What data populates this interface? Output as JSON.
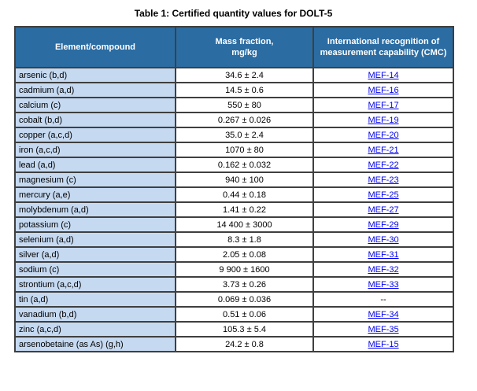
{
  "title": "Table 1: Certified quantity values for DOLT-5",
  "colors": {
    "header_bg": "#2b6ca2",
    "header_text": "#ffffff",
    "element_column_bg": "#c5d9f1",
    "link": "#0000ee",
    "border": "#3f3f3f"
  },
  "table": {
    "headers": {
      "element": "Element/compound",
      "mass_fraction": "Mass fraction,\nmg/kg",
      "cmc": "International recognition of measurement capability (CMC)"
    },
    "rows": [
      {
        "element": "arsenic (b,d)",
        "mass_fraction": "34.6 ± 2.4",
        "cmc": "MEF-14",
        "cmc_is_link": true
      },
      {
        "element": "cadmium (a,d)",
        "mass_fraction": "14.5 ± 0.6",
        "cmc": "MEF-16",
        "cmc_is_link": true
      },
      {
        "element": "calcium (c)",
        "mass_fraction": "550 ± 80",
        "cmc": "MEF-17",
        "cmc_is_link": true
      },
      {
        "element": "cobalt (b,d)",
        "mass_fraction": "0.267 ± 0.026",
        "cmc": "MEF-19",
        "cmc_is_link": true
      },
      {
        "element": "copper (a,c,d)",
        "mass_fraction": "35.0 ± 2.4",
        "cmc": "MEF-20",
        "cmc_is_link": true
      },
      {
        "element": "iron (a,c,d)",
        "mass_fraction": "1070 ± 80",
        "cmc": "MEF-21",
        "cmc_is_link": true
      },
      {
        "element": "lead (a,d)",
        "mass_fraction": "0.162 ± 0.032",
        "cmc": "MEF-22",
        "cmc_is_link": true
      },
      {
        "element": "magnesium (c)",
        "mass_fraction": "940 ± 100",
        "cmc": "MEF-23",
        "cmc_is_link": true
      },
      {
        "element": "mercury (a,e)",
        "mass_fraction": "0.44 ± 0.18",
        "cmc": "MEF-25",
        "cmc_is_link": true
      },
      {
        "element": "molybdenum (a,d)",
        "mass_fraction": "1.41 ± 0.22",
        "cmc": "MEF-27",
        "cmc_is_link": true
      },
      {
        "element": "potassium (c)",
        "mass_fraction": "14 400 ± 3000",
        "cmc": "MEF-29",
        "cmc_is_link": true
      },
      {
        "element": "selenium (a,d)",
        "mass_fraction": "8.3 ± 1.8",
        "cmc": "MEF-30",
        "cmc_is_link": true
      },
      {
        "element": "silver (a,d)",
        "mass_fraction": "2.05 ± 0.08",
        "cmc": "MEF-31",
        "cmc_is_link": true
      },
      {
        "element": "sodium (c)",
        "mass_fraction": "9 900 ± 1600",
        "cmc": "MEF-32",
        "cmc_is_link": true
      },
      {
        "element": "strontium (a,c,d)",
        "mass_fraction": "3.73 ± 0.26",
        "cmc": "MEF-33",
        "cmc_is_link": true
      },
      {
        "element": "tin (a,d)",
        "mass_fraction": "0.069 ± 0.036",
        "cmc": "--",
        "cmc_is_link": false
      },
      {
        "element": "vanadium (b,d)",
        "mass_fraction": "0.51 ± 0.06",
        "cmc": "MEF-34",
        "cmc_is_link": true
      },
      {
        "element": "zinc (a,c,d)",
        "mass_fraction": "105.3 ± 5.4",
        "cmc": "MEF-35",
        "cmc_is_link": true
      },
      {
        "element": "arsenobetaine (as As) (g,h)",
        "mass_fraction": "24.2 ± 0.8",
        "cmc": "MEF-15",
        "cmc_is_link": true
      }
    ]
  }
}
